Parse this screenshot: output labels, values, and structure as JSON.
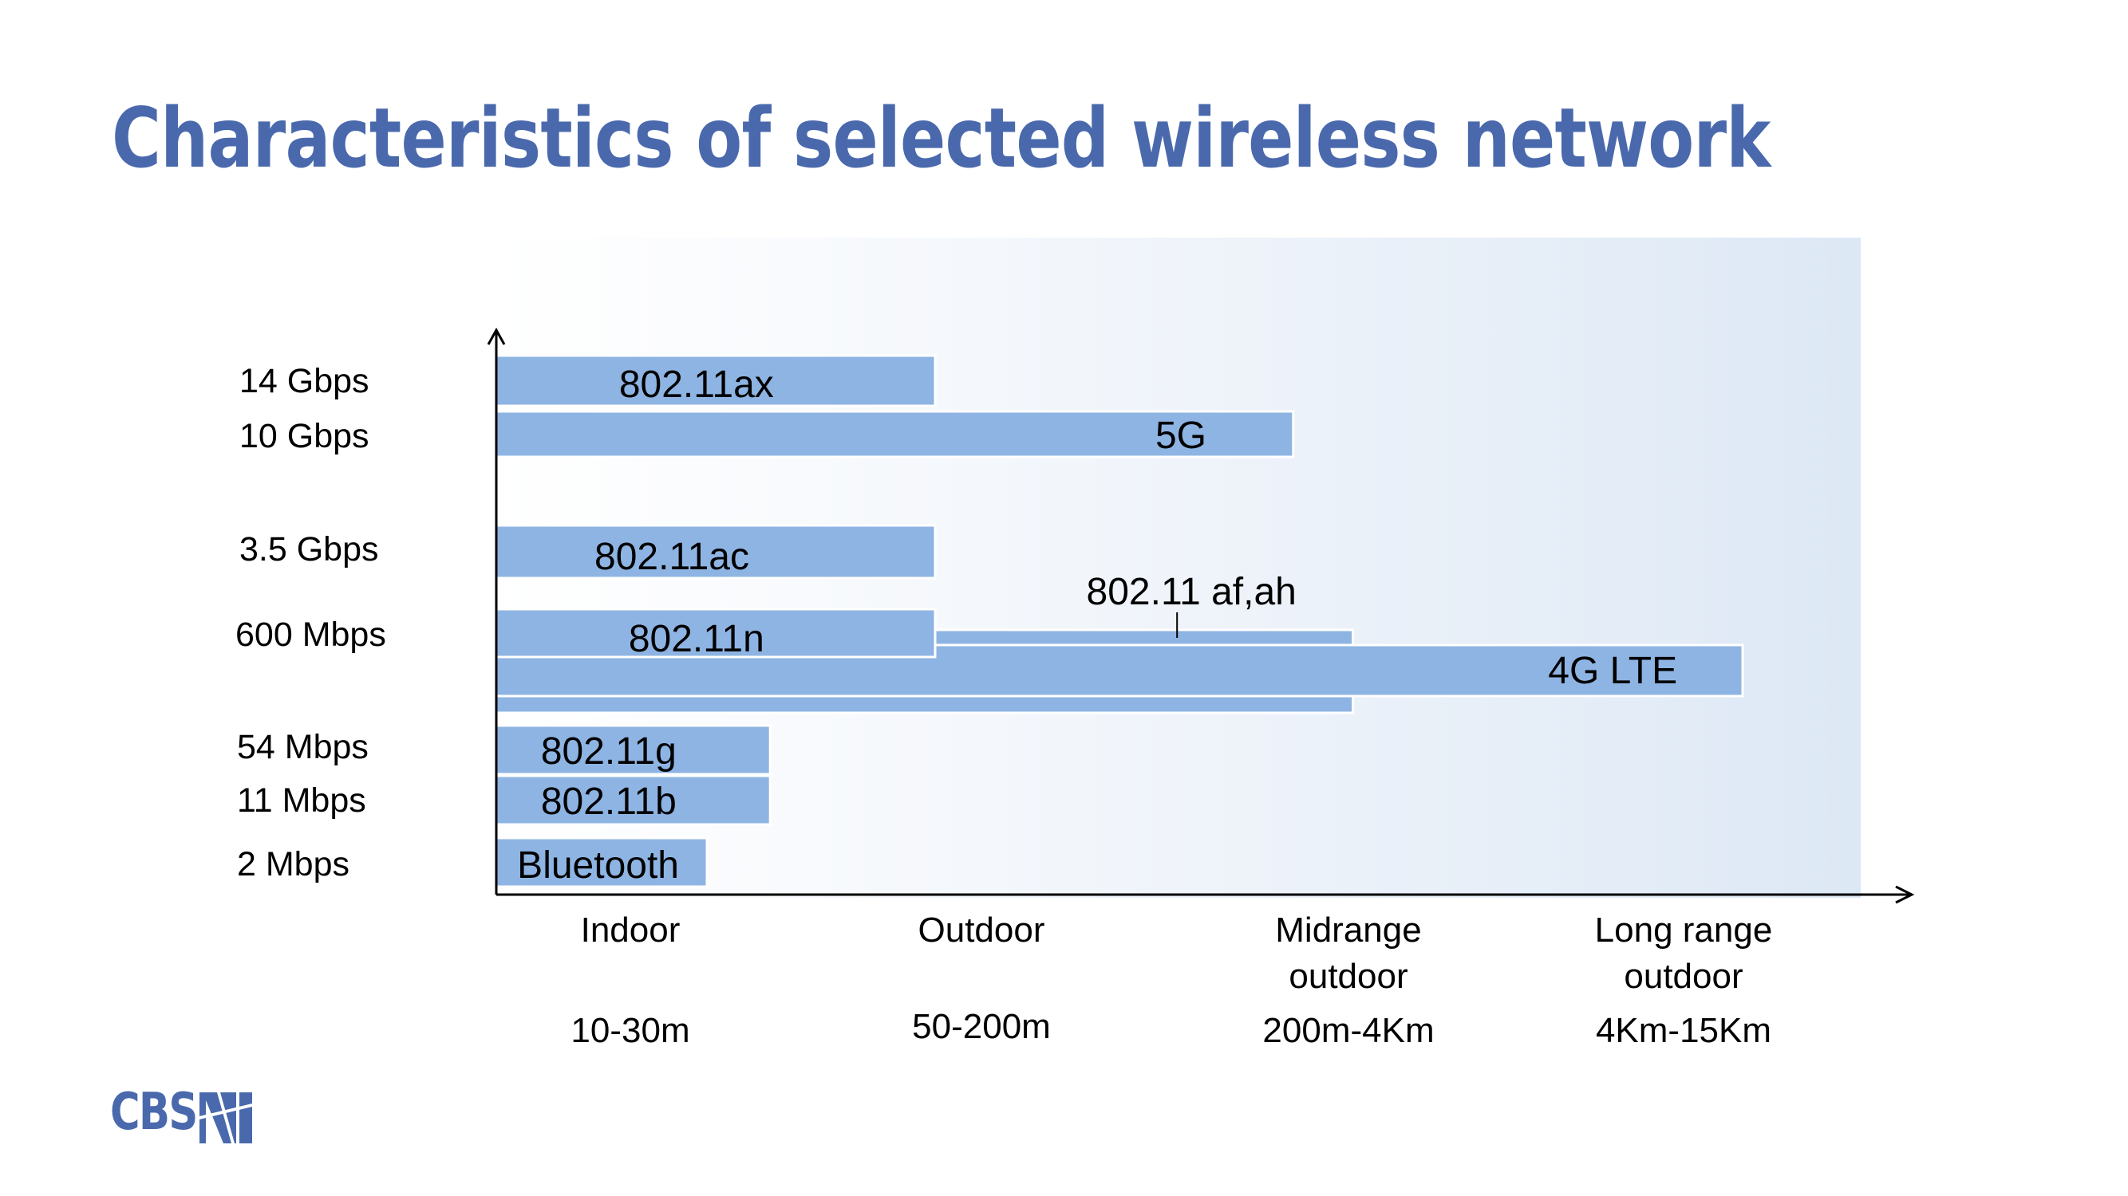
{
  "title": "Characteristics of selected wireless network",
  "colors": {
    "title": "#4a69ad",
    "bar_fill": "#8eb4e3",
    "bar_stroke": "#ffffff",
    "axis": "#000000",
    "logo": "#4a69ad"
  },
  "logo": {
    "text": "CBS",
    "icon": "cbs-emblem-icon"
  },
  "chart_data": {
    "type": "bar",
    "orientation": "horizontal",
    "title": "Characteristics of selected wireless network",
    "xlabel": "",
    "ylabel": "",
    "x_categories": [
      {
        "name": "Indoor",
        "range": "10-30m"
      },
      {
        "name": "Midrange outdoor",
        "display": "Midrange\noutdoor",
        "range": "200m-4Km"
      },
      {
        "name": "Outdoor",
        "range": "50-200m"
      },
      {
        "name": "Long range outdoor",
        "display": "Long range\noutdoor",
        "range": "4Km-15Km"
      }
    ],
    "x_order": [
      "Indoor",
      "Outdoor",
      "Midrange outdoor",
      "Long range outdoor"
    ],
    "y_ticks": [
      "14 Gbps",
      "10 Gbps",
      "3.5 Gbps",
      "600 Mbps",
      "54 Mbps",
      "11 Mbps",
      "2 Mbps"
    ],
    "y_tick_order": [
      0,
      1,
      2,
      3,
      4,
      5,
      6
    ],
    "bars": [
      {
        "label": "802.11ax",
        "speed": "14 Gbps",
        "range_extent": 1.25,
        "label_pos": 0.57
      },
      {
        "label": "5G",
        "speed": "10 Gbps",
        "range_extent": 2.27,
        "label_pos": 1.95
      },
      {
        "label": "802.11ac",
        "speed": "3.5 Gbps",
        "range_extent": 1.25,
        "label_pos": 0.5
      },
      {
        "label": "802.11n",
        "speed": "600 Mbps",
        "range_extent": 1.25,
        "label_pos": 0.57
      },
      {
        "label": "802.11 af,ah",
        "speed": "600 Mbps",
        "range_extent": 2.44,
        "label_pos": 1.98
      },
      {
        "label": "4G LTE",
        "speed": "600 Mbps",
        "range_extent": 3.55,
        "label_pos": 3.18
      },
      {
        "label": "802.11g",
        "speed": "54 Mbps",
        "range_extent": 0.78,
        "label_pos": 0.32
      },
      {
        "label": "802.11b",
        "speed": "11 Mbps",
        "range_extent": 0.78,
        "label_pos": 0.32
      },
      {
        "label": "Bluetooth",
        "speed": "2 Mbps",
        "range_extent": 0.6,
        "label_pos": 0.29
      }
    ]
  }
}
